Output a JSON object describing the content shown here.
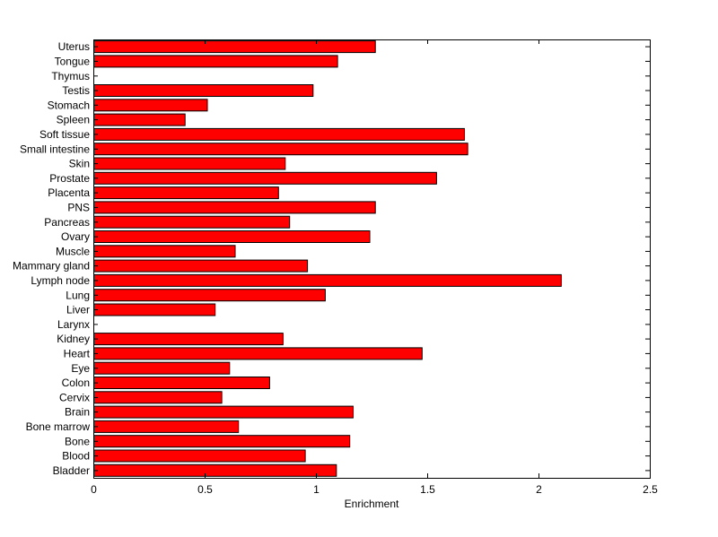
{
  "chart_data": {
    "type": "bar",
    "orientation": "horizontal",
    "title": "",
    "xlabel": "Enrichment",
    "ylabel": "",
    "xlim": [
      0,
      2.5
    ],
    "xticks": [
      "0",
      "0.5",
      "1",
      "1.5",
      "2",
      "2.5"
    ],
    "grid": false,
    "bar_color": "#ff0000",
    "categories": [
      "Bladder",
      "Blood",
      "Bone",
      "Bone marrow",
      "Brain",
      "Cervix",
      "Colon",
      "Eye",
      "Heart",
      "Kidney",
      "Larynx",
      "Liver",
      "Lung",
      "Lymph node",
      "Mammary gland",
      "Muscle",
      "Ovary",
      "Pancreas",
      "PNS",
      "Placenta",
      "Prostate",
      "Skin",
      "Small intestine",
      "Soft tissue",
      "Spleen",
      "Stomach",
      "Testis",
      "Thymus",
      "Tongue",
      "Uterus"
    ],
    "values": [
      1.09,
      0.95,
      1.15,
      0.65,
      1.165,
      0.575,
      0.79,
      0.61,
      1.475,
      0.85,
      0,
      0.545,
      1.04,
      2.1,
      0.96,
      0.635,
      1.24,
      0.88,
      1.265,
      0.83,
      1.54,
      0.86,
      1.68,
      1.665,
      0.41,
      0.51,
      0.985,
      0,
      1.095,
      1.265
    ]
  }
}
